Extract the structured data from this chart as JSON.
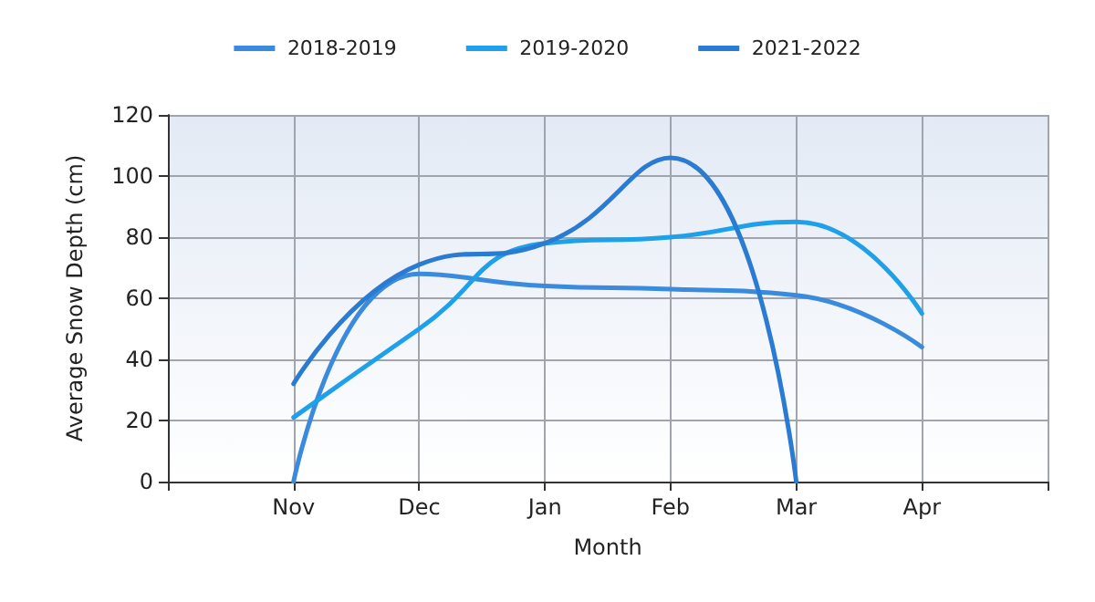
{
  "chart_data": {
    "type": "line",
    "xlabel": "Month",
    "ylabel": "Average Snow Depth (cm)",
    "categories": [
      null,
      "Nov",
      "Dec",
      "Jan",
      "Feb",
      "Mar",
      "Apr",
      null
    ],
    "series": [
      {
        "name": "2018-2019",
        "color": "#3a8ade",
        "values": [
          null,
          0,
          68,
          64,
          63,
          61,
          44,
          null
        ]
      },
      {
        "name": "2019-2020",
        "color": "#1ea0ea",
        "values": [
          null,
          21,
          50,
          78,
          80,
          85,
          55,
          null
        ]
      },
      {
        "name": "2021-2022",
        "color": "#2a7bd2",
        "values": [
          null,
          32,
          71,
          78,
          106,
          0,
          null,
          null
        ]
      }
    ],
    "ylim": [
      0,
      120
    ],
    "yticks": [
      0,
      20,
      40,
      60,
      80,
      100,
      120
    ],
    "grid": true,
    "legend": "top",
    "marker": "none",
    "line_style": "solid"
  }
}
